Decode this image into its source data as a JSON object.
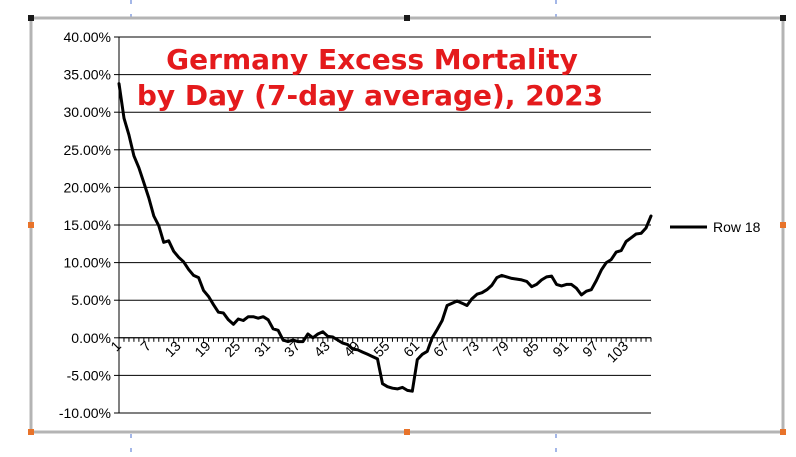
{
  "chart_data": {
    "type": "line",
    "title": "Germany Excess Mortality by Day (7-day average), 2023",
    "title_lines": [
      "Germany Excess Mortality",
      "by Day (7-day average), 2023"
    ],
    "xlabel": "",
    "ylabel": "",
    "ylim": [
      -10,
      40
    ],
    "y_ticks": [
      40,
      35,
      30,
      25,
      20,
      15,
      10,
      5,
      0,
      -5,
      -10
    ],
    "y_tick_labels": [
      "40.00%",
      "35.00%",
      "30.00%",
      "25.00%",
      "20.00%",
      "15.00%",
      "10.00%",
      "5.00%",
      "0.00%",
      "-5.00%",
      "-10.00%"
    ],
    "x_range": [
      1,
      108
    ],
    "x_tick_labels": [
      "1",
      "7",
      "13",
      "19",
      "25",
      "31",
      "37",
      "43",
      "49",
      "55",
      "61",
      "67",
      "73",
      "79",
      "85",
      "91",
      "97",
      "103"
    ],
    "grid": "horizontal",
    "legend_position": "right",
    "series": [
      {
        "name": "Row 18",
        "color": "#000000",
        "x": [
          1,
          2,
          3,
          4,
          5,
          6,
          7,
          8,
          9,
          10,
          11,
          12,
          13,
          14,
          15,
          16,
          17,
          18,
          19,
          20,
          21,
          22,
          23,
          24,
          25,
          26,
          27,
          28,
          29,
          30,
          31,
          32,
          33,
          34,
          35,
          36,
          37,
          38,
          39,
          40,
          41,
          42,
          43,
          44,
          45,
          46,
          47,
          48,
          49,
          50,
          51,
          52,
          53,
          54,
          55,
          56,
          57,
          58,
          59,
          60,
          61,
          62,
          63,
          64,
          65,
          66,
          67,
          68,
          69,
          70,
          71,
          72,
          73,
          74,
          75,
          76,
          77,
          78,
          79,
          80,
          81,
          82,
          83,
          84,
          85,
          86,
          87,
          88,
          89,
          90,
          91,
          92,
          93,
          94,
          95,
          96,
          97,
          98,
          99,
          100,
          101,
          102,
          103,
          104,
          105,
          106,
          107,
          108
        ],
        "values": [
          33.8,
          29.2,
          27.0,
          24.2,
          22.6,
          20.6,
          18.6,
          16.2,
          14.9,
          12.7,
          12.9,
          11.5,
          10.7,
          10.1,
          9.1,
          8.3,
          8.0,
          6.3,
          5.5,
          4.4,
          3.4,
          3.3,
          2.4,
          1.8,
          2.5,
          2.3,
          2.8,
          2.8,
          2.6,
          2.8,
          2.4,
          1.2,
          1.0,
          -0.3,
          -0.5,
          -0.3,
          -0.5,
          -0.5,
          0.5,
          0.0,
          0.5,
          0.8,
          0.2,
          0.1,
          -0.3,
          -0.7,
          -0.9,
          -1.5,
          -1.6,
          -1.9,
          -2.2,
          -2.5,
          -2.8,
          -6.1,
          -6.5,
          -6.7,
          -6.8,
          -6.6,
          -7.0,
          -7.1,
          -2.9,
          -2.2,
          -1.8,
          0.0,
          1.1,
          2.3,
          4.3,
          4.6,
          4.9,
          4.6,
          4.3,
          5.2,
          5.8,
          6.0,
          6.4,
          7.0,
          8.0,
          8.3,
          8.1,
          7.9,
          7.8,
          7.7,
          7.5,
          6.8,
          7.1,
          7.7,
          8.1,
          8.2,
          7.1,
          6.9,
          7.1,
          7.1,
          6.6,
          5.7,
          6.2,
          6.4,
          7.6,
          9.0,
          10.0,
          10.4,
          11.4,
          11.6,
          12.8,
          13.3,
          13.8,
          13.9,
          14.6,
          16.2
        ]
      }
    ]
  }
}
